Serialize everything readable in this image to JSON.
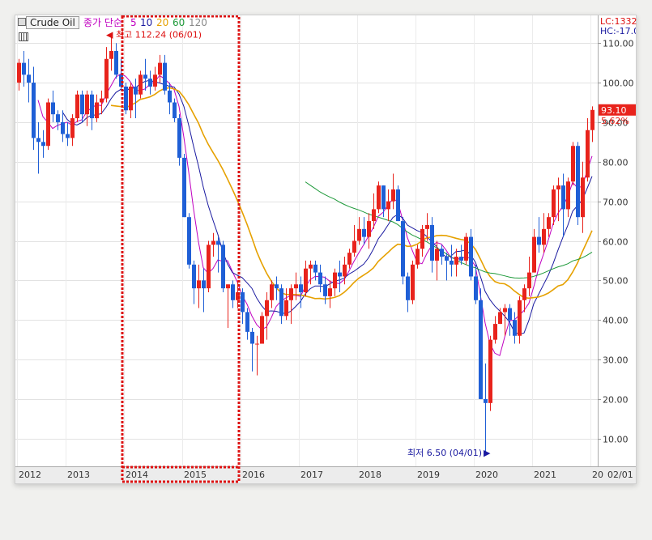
{
  "toolbar": {
    "symbol": "Crude Oil",
    "ma_label": "종가 단순",
    "ma_periods": [
      "5",
      "10",
      "20",
      "60",
      "120"
    ],
    "ma_colors": [
      "#c000c0",
      "#1a1aa0",
      "#e6a100",
      "#1e9a3a",
      "#888888"
    ]
  },
  "right_labels": {
    "lc": "LC:1332",
    "hc": "HC:-17.0"
  },
  "annotations": {
    "high": "최고 112.24 (06/01)",
    "low": "최저 6.50 (04/01)",
    "last_price": "93.10",
    "last_change": "5.62%"
  },
  "colors": {
    "up": "#e8231c",
    "down": "#1f5fd6",
    "highlight": "#dd1111"
  },
  "chart_data": {
    "type": "candlestick",
    "title": "",
    "interval": "monthly",
    "x_labels": [
      "2012",
      "2013",
      "2014",
      "2015",
      "2016",
      "2017",
      "2018",
      "2019",
      "2020",
      "2021",
      "20",
      "02/01"
    ],
    "y_ticks": [
      "110.00",
      "100.00",
      "90.00",
      "80.00",
      "70.00",
      "60.00",
      "50.00",
      "40.00",
      "30.00",
      "20.00",
      "10.00"
    ],
    "ylim": [
      3,
      117
    ],
    "grid": true,
    "candles": [
      {
        "o": 100,
        "h": 106,
        "l": 98,
        "c": 105
      },
      {
        "o": 105,
        "h": 108,
        "l": 99,
        "c": 102
      },
      {
        "o": 102,
        "h": 106,
        "l": 95,
        "c": 100
      },
      {
        "o": 100,
        "h": 104,
        "l": 83,
        "c": 86
      },
      {
        "o": 86,
        "h": 90,
        "l": 77,
        "c": 85
      },
      {
        "o": 85,
        "h": 88,
        "l": 81,
        "c": 84
      },
      {
        "o": 84,
        "h": 96,
        "l": 83,
        "c": 95
      },
      {
        "o": 95,
        "h": 98,
        "l": 90,
        "c": 92
      },
      {
        "o": 92,
        "h": 93,
        "l": 88,
        "c": 90
      },
      {
        "o": 90,
        "h": 93,
        "l": 85,
        "c": 87
      },
      {
        "o": 87,
        "h": 90,
        "l": 84,
        "c": 86
      },
      {
        "o": 86,
        "h": 92,
        "l": 84,
        "c": 91
      },
      {
        "o": 91,
        "h": 98,
        "l": 90,
        "c": 97
      },
      {
        "o": 97,
        "h": 98,
        "l": 90,
        "c": 92
      },
      {
        "o": 92,
        "h": 98,
        "l": 89,
        "c": 97
      },
      {
        "o": 97,
        "h": 98,
        "l": 88,
        "c": 91
      },
      {
        "o": 91,
        "h": 97,
        "l": 90,
        "c": 95
      },
      {
        "o": 95,
        "h": 98,
        "l": 92,
        "c": 96
      },
      {
        "o": 96,
        "h": 109,
        "l": 95,
        "c": 106
      },
      {
        "o": 106,
        "h": 112,
        "l": 103,
        "c": 108
      },
      {
        "o": 108,
        "h": 110,
        "l": 101,
        "c": 102
      },
      {
        "o": 102,
        "h": 106,
        "l": 98,
        "c": 99
      },
      {
        "o": 99,
        "h": 100,
        "l": 92,
        "c": 93
      },
      {
        "o": 93,
        "h": 100,
        "l": 91,
        "c": 99
      },
      {
        "o": 99,
        "h": 101,
        "l": 91,
        "c": 97
      },
      {
        "o": 97,
        "h": 103,
        "l": 96,
        "c": 102
      },
      {
        "o": 102,
        "h": 106,
        "l": 98,
        "c": 101
      },
      {
        "o": 101,
        "h": 103,
        "l": 97,
        "c": 99
      },
      {
        "o": 99,
        "h": 104,
        "l": 98,
        "c": 102
      },
      {
        "o": 102,
        "h": 107,
        "l": 100,
        "c": 105
      },
      {
        "o": 105,
        "h": 107,
        "l": 97,
        "c": 98
      },
      {
        "o": 98,
        "h": 100,
        "l": 92,
        "c": 95
      },
      {
        "o": 95,
        "h": 96,
        "l": 90,
        "c": 91
      },
      {
        "o": 91,
        "h": 92,
        "l": 79,
        "c": 81
      },
      {
        "o": 81,
        "h": 82,
        "l": 66,
        "c": 66
      },
      {
        "o": 66,
        "h": 67,
        "l": 53,
        "c": 54
      },
      {
        "o": 54,
        "h": 55,
        "l": 44,
        "c": 48
      },
      {
        "o": 48,
        "h": 54,
        "l": 43,
        "c": 50
      },
      {
        "o": 50,
        "h": 53,
        "l": 42,
        "c": 48
      },
      {
        "o": 48,
        "h": 60,
        "l": 47,
        "c": 59
      },
      {
        "o": 59,
        "h": 62,
        "l": 56,
        "c": 60
      },
      {
        "o": 60,
        "h": 61,
        "l": 52,
        "c": 59
      },
      {
        "o": 59,
        "h": 60,
        "l": 47,
        "c": 48
      },
      {
        "o": 48,
        "h": 49,
        "l": 38,
        "c": 49
      },
      {
        "o": 49,
        "h": 50,
        "l": 43,
        "c": 45
      },
      {
        "o": 45,
        "h": 50,
        "l": 43,
        "c": 47
      },
      {
        "o": 47,
        "h": 48,
        "l": 39,
        "c": 42
      },
      {
        "o": 42,
        "h": 43,
        "l": 35,
        "c": 37
      },
      {
        "o": 37,
        "h": 38,
        "l": 27,
        "c": 34
      },
      {
        "o": 34,
        "h": 36,
        "l": 26,
        "c": 34
      },
      {
        "o": 34,
        "h": 42,
        "l": 34,
        "c": 41
      },
      {
        "o": 41,
        "h": 47,
        "l": 35,
        "c": 45
      },
      {
        "o": 45,
        "h": 50,
        "l": 43,
        "c": 49
      },
      {
        "o": 49,
        "h": 51,
        "l": 45,
        "c": 48
      },
      {
        "o": 48,
        "h": 49,
        "l": 39,
        "c": 41
      },
      {
        "o": 41,
        "h": 48,
        "l": 40,
        "c": 45
      },
      {
        "o": 45,
        "h": 49,
        "l": 39,
        "c": 48
      },
      {
        "o": 48,
        "h": 52,
        "l": 45,
        "c": 49
      },
      {
        "o": 49,
        "h": 51,
        "l": 43,
        "c": 47
      },
      {
        "o": 47,
        "h": 55,
        "l": 46,
        "c": 53
      },
      {
        "o": 53,
        "h": 55,
        "l": 49,
        "c": 54
      },
      {
        "o": 54,
        "h": 55,
        "l": 50,
        "c": 52
      },
      {
        "o": 52,
        "h": 54,
        "l": 47,
        "c": 49
      },
      {
        "o": 49,
        "h": 51,
        "l": 44,
        "c": 46
      },
      {
        "o": 46,
        "h": 50,
        "l": 43,
        "c": 48
      },
      {
        "o": 48,
        "h": 53,
        "l": 46,
        "c": 52
      },
      {
        "o": 52,
        "h": 55,
        "l": 47,
        "c": 51
      },
      {
        "o": 51,
        "h": 56,
        "l": 49,
        "c": 54
      },
      {
        "o": 54,
        "h": 58,
        "l": 53,
        "c": 57
      },
      {
        "o": 57,
        "h": 64,
        "l": 56,
        "c": 60
      },
      {
        "o": 60,
        "h": 66,
        "l": 59,
        "c": 63
      },
      {
        "o": 63,
        "h": 66,
        "l": 59,
        "c": 61
      },
      {
        "o": 61,
        "h": 67,
        "l": 58,
        "c": 65
      },
      {
        "o": 65,
        "h": 72,
        "l": 63,
        "c": 68
      },
      {
        "o": 68,
        "h": 75,
        "l": 67,
        "c": 74
      },
      {
        "o": 74,
        "h": 74,
        "l": 66,
        "c": 68
      },
      {
        "o": 68,
        "h": 73,
        "l": 65,
        "c": 70
      },
      {
        "o": 70,
        "h": 77,
        "l": 68,
        "c": 73
      },
      {
        "o": 73,
        "h": 74,
        "l": 65,
        "c": 65
      },
      {
        "o": 65,
        "h": 66,
        "l": 49,
        "c": 51
      },
      {
        "o": 51,
        "h": 52,
        "l": 42,
        "c": 45
      },
      {
        "o": 45,
        "h": 55,
        "l": 44,
        "c": 54
      },
      {
        "o": 54,
        "h": 59,
        "l": 53,
        "c": 58
      },
      {
        "o": 58,
        "h": 64,
        "l": 56,
        "c": 63
      },
      {
        "o": 63,
        "h": 67,
        "l": 60,
        "c": 64
      },
      {
        "o": 64,
        "h": 66,
        "l": 52,
        "c": 55
      },
      {
        "o": 55,
        "h": 60,
        "l": 50,
        "c": 58
      },
      {
        "o": 58,
        "h": 59,
        "l": 54,
        "c": 56
      },
      {
        "o": 56,
        "h": 57,
        "l": 50,
        "c": 55
      },
      {
        "o": 55,
        "h": 59,
        "l": 51,
        "c": 54
      },
      {
        "o": 54,
        "h": 58,
        "l": 51,
        "c": 56
      },
      {
        "o": 56,
        "h": 59,
        "l": 54,
        "c": 55
      },
      {
        "o": 55,
        "h": 62,
        "l": 54,
        "c": 61
      },
      {
        "o": 61,
        "h": 63,
        "l": 50,
        "c": 51
      },
      {
        "o": 51,
        "h": 54,
        "l": 44,
        "c": 45
      },
      {
        "o": 45,
        "h": 48,
        "l": 20,
        "c": 20
      },
      {
        "o": 20,
        "h": 29,
        "l": 6.5,
        "c": 19
      },
      {
        "o": 19,
        "h": 36,
        "l": 17,
        "c": 35
      },
      {
        "o": 35,
        "h": 41,
        "l": 34,
        "c": 39
      },
      {
        "o": 39,
        "h": 43,
        "l": 39,
        "c": 42
      },
      {
        "o": 42,
        "h": 44,
        "l": 36,
        "c": 43
      },
      {
        "o": 43,
        "h": 44,
        "l": 36,
        "c": 40
      },
      {
        "o": 40,
        "h": 42,
        "l": 34,
        "c": 36
      },
      {
        "o": 36,
        "h": 46,
        "l": 34,
        "c": 45
      },
      {
        "o": 45,
        "h": 49,
        "l": 42,
        "c": 48
      },
      {
        "o": 48,
        "h": 56,
        "l": 46,
        "c": 52
      },
      {
        "o": 52,
        "h": 63,
        "l": 52,
        "c": 61
      },
      {
        "o": 61,
        "h": 66,
        "l": 57,
        "c": 59
      },
      {
        "o": 59,
        "h": 67,
        "l": 57,
        "c": 63
      },
      {
        "o": 63,
        "h": 67,
        "l": 61,
        "c": 66
      },
      {
        "o": 66,
        "h": 74,
        "l": 64,
        "c": 73
      },
      {
        "o": 73,
        "h": 76,
        "l": 65,
        "c": 74
      },
      {
        "o": 74,
        "h": 77,
        "l": 61,
        "c": 68
      },
      {
        "o": 68,
        "h": 76,
        "l": 66,
        "c": 75
      },
      {
        "o": 75,
        "h": 85,
        "l": 74,
        "c": 84
      },
      {
        "o": 84,
        "h": 85,
        "l": 64,
        "c": 66
      },
      {
        "o": 66,
        "h": 80,
        "l": 62,
        "c": 76
      },
      {
        "o": 76,
        "h": 91,
        "l": 75,
        "c": 88
      },
      {
        "o": 88,
        "h": 94,
        "l": 85,
        "c": 93.1
      }
    ],
    "ma_order": [
      5,
      10,
      20,
      60
    ],
    "highlight_x_range": [
      "2014",
      "2015"
    ]
  }
}
